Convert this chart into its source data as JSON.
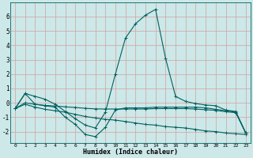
{
  "title": "",
  "xlabel": "Humidex (Indice chaleur)",
  "ylabel": "",
  "bg_color": "#cce8e8",
  "grid_color": "#d4a0a0",
  "line_color": "#006060",
  "xlim": [
    -0.5,
    23.5
  ],
  "ylim": [
    -2.8,
    7.0
  ],
  "yticks": [
    -2,
    -1,
    0,
    1,
    2,
    3,
    4,
    5,
    6
  ],
  "xticks": [
    0,
    1,
    2,
    3,
    4,
    5,
    6,
    7,
    8,
    9,
    10,
    11,
    12,
    13,
    14,
    15,
    16,
    17,
    18,
    19,
    20,
    21,
    22,
    23
  ],
  "lines": [
    {
      "x": [
        0,
        1,
        2,
        3,
        4,
        5,
        6,
        7,
        8,
        9,
        10,
        11,
        12,
        13,
        14,
        15,
        16,
        17,
        18,
        19,
        20,
        21,
        22,
        23
      ],
      "y": [
        -0.4,
        0.65,
        0.45,
        0.25,
        -0.1,
        -0.6,
        -1.1,
        -1.55,
        -1.75,
        -0.65,
        2.0,
        4.5,
        5.5,
        6.1,
        6.5,
        3.1,
        0.45,
        0.1,
        -0.05,
        -0.15,
        -0.2,
        -0.5,
        -0.6,
        -2.1
      ]
    },
    {
      "x": [
        0,
        1,
        2,
        3,
        4,
        5,
        6,
        7,
        8,
        9,
        10,
        11,
        12,
        13,
        14,
        15,
        16,
        17,
        18,
        19,
        20,
        21,
        22,
        23
      ],
      "y": [
        -0.4,
        0.65,
        -0.1,
        -0.2,
        -0.3,
        -1.0,
        -1.5,
        -2.2,
        -2.35,
        -1.7,
        -0.5,
        -0.35,
        -0.35,
        -0.35,
        -0.3,
        -0.3,
        -0.3,
        -0.3,
        -0.3,
        -0.35,
        -0.45,
        -0.55,
        -0.65,
        -2.1
      ]
    },
    {
      "x": [
        0,
        1,
        2,
        3,
        4,
        5,
        6,
        7,
        8,
        9,
        10,
        11,
        12,
        13,
        14,
        15,
        16,
        17,
        18,
        19,
        20,
        21,
        22,
        23
      ],
      "y": [
        -0.4,
        0.0,
        -0.1,
        -0.18,
        -0.22,
        -0.28,
        -0.32,
        -0.38,
        -0.42,
        -0.43,
        -0.43,
        -0.43,
        -0.43,
        -0.43,
        -0.4,
        -0.4,
        -0.4,
        -0.4,
        -0.43,
        -0.48,
        -0.52,
        -0.62,
        -0.68,
        -2.1
      ]
    },
    {
      "x": [
        0,
        1,
        2,
        3,
        4,
        5,
        6,
        7,
        8,
        9,
        10,
        11,
        12,
        13,
        14,
        15,
        16,
        17,
        18,
        19,
        20,
        21,
        22,
        23
      ],
      "y": [
        -0.4,
        -0.1,
        -0.3,
        -0.45,
        -0.55,
        -0.65,
        -0.8,
        -0.95,
        -1.05,
        -1.15,
        -1.2,
        -1.3,
        -1.4,
        -1.5,
        -1.55,
        -1.65,
        -1.7,
        -1.75,
        -1.85,
        -1.95,
        -2.0,
        -2.1,
        -2.15,
        -2.2
      ]
    }
  ]
}
